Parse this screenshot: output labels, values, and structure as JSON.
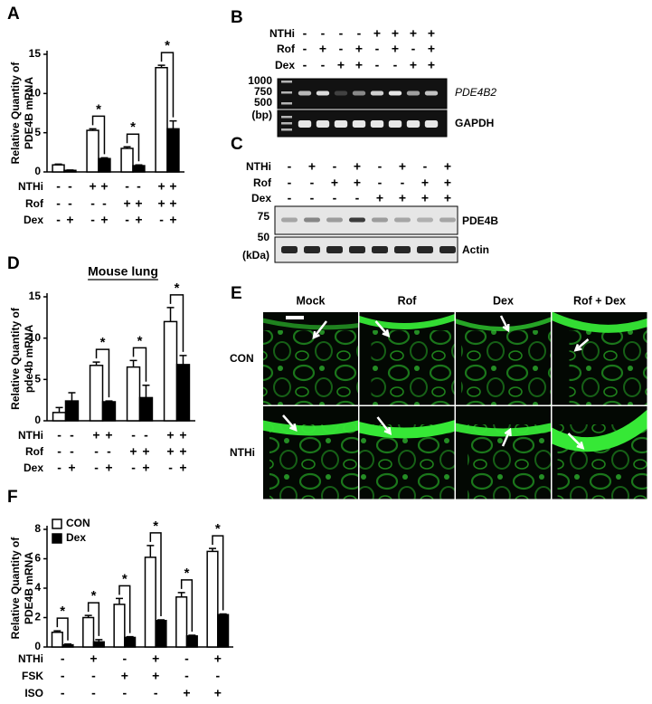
{
  "chart_data": [
    {
      "type": "bar",
      "panel": "A",
      "ylabel": [
        "Relative Quantity of",
        "PDE4B mRNA"
      ],
      "ylim": [
        0,
        15
      ],
      "yticks": [
        0,
        5,
        10,
        15
      ],
      "series": [
        {
          "color": "#ffffff",
          "values": [
            0.9,
            5.3,
            3.0,
            13.3
          ],
          "errors": [
            0.1,
            0.2,
            0.2,
            0.3
          ]
        },
        {
          "color": "#000000",
          "values": [
            0.2,
            1.7,
            0.8,
            5.5
          ],
          "errors": [
            0.05,
            0.1,
            0.1,
            1.0
          ]
        }
      ],
      "significance": [
        null,
        "*",
        "*",
        "*"
      ],
      "conditions": [
        {
          "name": "NTHi",
          "values": [
            "-",
            "-",
            "+",
            "+",
            "-",
            "-",
            "+",
            "+"
          ]
        },
        {
          "name": "Rof",
          "values": [
            "-",
            "-",
            "-",
            "-",
            "+",
            "+",
            "+",
            "+"
          ]
        },
        {
          "name": "Dex",
          "values": [
            "-",
            "+",
            "-",
            "+",
            "-",
            "+",
            "-",
            "+"
          ]
        }
      ]
    },
    {
      "type": "bar",
      "panel": "D",
      "title": "Mouse lung",
      "ylabel": [
        "Relative Quantity of",
        "pde4b mRNA"
      ],
      "ylim": [
        0,
        15
      ],
      "yticks": [
        0,
        5,
        10,
        15
      ],
      "series": [
        {
          "color": "#ffffff",
          "values": [
            1.0,
            6.7,
            6.5,
            12.0
          ],
          "errors": [
            0.6,
            0.4,
            0.8,
            1.7
          ]
        },
        {
          "color": "#000000",
          "values": [
            2.4,
            2.3,
            2.8,
            6.8
          ],
          "errors": [
            1.0,
            0.1,
            1.5,
            1.1
          ]
        }
      ],
      "significance": [
        null,
        "*",
        "*",
        "*"
      ],
      "conditions": [
        {
          "name": "NTHi",
          "values": [
            "-",
            "-",
            "+",
            "+",
            "-",
            "-",
            "+",
            "+"
          ]
        },
        {
          "name": "Rof",
          "values": [
            "-",
            "-",
            "-",
            "-",
            "+",
            "+",
            "+",
            "+"
          ]
        },
        {
          "name": "Dex",
          "values": [
            "-",
            "+",
            "-",
            "+",
            "-",
            "+",
            "-",
            "+"
          ]
        }
      ]
    },
    {
      "type": "bar",
      "panel": "F",
      "ylabel": [
        "Relative Quantity of",
        "PDE4B mRNA"
      ],
      "ylim": [
        0,
        8
      ],
      "yticks": [
        0,
        2,
        4,
        6,
        8
      ],
      "legend": "upper left",
      "series": [
        {
          "name": "CON",
          "color": "#ffffff",
          "values": [
            1.0,
            2.0,
            2.9,
            6.1,
            3.4,
            6.5
          ],
          "errors": [
            0.1,
            0.15,
            0.4,
            0.8,
            0.3,
            0.2
          ]
        },
        {
          "name": "Dex",
          "color": "#000000",
          "values": [
            0.15,
            0.35,
            0.65,
            1.8,
            0.75,
            2.2
          ],
          "errors": [
            0.05,
            0.15,
            0.05,
            0.05,
            0.05,
            0.05
          ]
        }
      ],
      "significance": [
        "*",
        "*",
        "*",
        "*",
        "*",
        "*"
      ],
      "conditions": [
        {
          "name": "NTHi",
          "values": [
            "-",
            "+",
            "-",
            "+",
            "-",
            "+"
          ]
        },
        {
          "name": "FSK",
          "values": [
            "-",
            "-",
            "+",
            "+",
            "-",
            "-"
          ]
        },
        {
          "name": "ISO",
          "values": [
            "-",
            "-",
            "-",
            "-",
            "+",
            "+"
          ]
        }
      ]
    }
  ],
  "gels": [
    {
      "panel": "B",
      "conditions": [
        {
          "name": "NTHi",
          "values": [
            "-",
            "-",
            "-",
            "-",
            "+",
            "+",
            "+",
            "+"
          ]
        },
        {
          "name": "Rof",
          "values": [
            "-",
            "+",
            "-",
            "+",
            "-",
            "+",
            "-",
            "+"
          ]
        },
        {
          "name": "Dex",
          "values": [
            "-",
            "-",
            "+",
            "+",
            "-",
            "-",
            "+",
            "+"
          ]
        }
      ],
      "markers": [
        1000,
        750,
        500
      ],
      "marker_unit": "(bp)",
      "bands": [
        "PDE4B2",
        "GAPDH"
      ]
    },
    {
      "panel": "C",
      "conditions": [
        {
          "name": "NTHi",
          "values": [
            "-",
            "+",
            "-",
            "+",
            "-",
            "+",
            "-",
            "+"
          ]
        },
        {
          "name": "Rof",
          "values": [
            "-",
            "-",
            "+",
            "+",
            "-",
            "-",
            "+",
            "+"
          ]
        },
        {
          "name": "Dex",
          "values": [
            "-",
            "-",
            "-",
            "-",
            "+",
            "+",
            "+",
            "+"
          ]
        }
      ],
      "markers": [
        75,
        50
      ],
      "marker_unit": "(kDa)",
      "bands": [
        "PDE4B",
        "Actin"
      ]
    }
  ],
  "micrographs": {
    "panel": "E",
    "columns": [
      "Mock",
      "Rof",
      "Dex",
      "Rof + Dex"
    ],
    "rows": [
      "CON",
      "NTHi"
    ]
  }
}
